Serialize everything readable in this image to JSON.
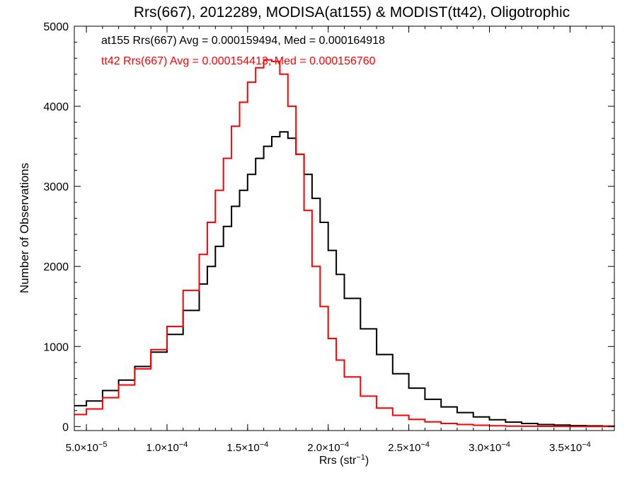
{
  "chart_data": {
    "type": "line",
    "title": "Rrs(667), 2012289, MODISA(at155) & MODIST(tt42), Oligotrophic",
    "xlabel_prefix": "Rrs (str",
    "xlabel_sup": "−1",
    "xlabel_suffix": ")",
    "ylabel": "Number of Observations",
    "xlim": [
      4.25e-05,
      0.0003775
    ],
    "ylim": [
      -50,
      5000
    ],
    "x_ticks": [
      {
        "mant": "5.0×10",
        "exp": "−5",
        "value": 5e-05
      },
      {
        "mant": "1.0×10",
        "exp": "−4",
        "value": 0.0001
      },
      {
        "mant": "1.5×10",
        "exp": "−4",
        "value": 0.00015
      },
      {
        "mant": "2.0×10",
        "exp": "−4",
        "value": 0.0002
      },
      {
        "mant": "2.5×10",
        "exp": "−4",
        "value": 0.00025
      },
      {
        "mant": "3.0×10",
        "exp": "−4",
        "value": 0.0003
      },
      {
        "mant": "3.5×10",
        "exp": "−4",
        "value": 0.00035
      }
    ],
    "y_ticks": [
      "0",
      "1000",
      "2000",
      "3000",
      "4000",
      "5000"
    ],
    "annotations": [
      {
        "text": "at155 Rrs(667) Avg = 0.000159494, Med = 0.000164918",
        "color": "#000000"
      },
      {
        "text": "tt42 Rrs(667) Avg = 0.000154413, Med = 0.000156760",
        "color": "#ff0000"
      }
    ],
    "series": [
      {
        "color": "#000000",
        "x": [
          4.25e-05,
          5e-05,
          6e-05,
          7e-05,
          8e-05,
          9e-05,
          0.0001,
          0.00011,
          0.00012,
          0.000125,
          0.00013,
          0.000135,
          0.00014,
          0.000145,
          0.00015,
          0.000155,
          0.00016,
          0.000165,
          0.00017,
          0.000175,
          0.00018,
          0.000185,
          0.00019,
          0.000195,
          0.0002,
          0.000205,
          0.00021,
          0.00022,
          0.00023,
          0.00024,
          0.00025,
          0.00026,
          0.00027,
          0.00028,
          0.00029,
          0.0003,
          0.00031,
          0.00032,
          0.00033,
          0.00034,
          0.00035,
          0.00036,
          0.00037,
          0.0003775
        ],
        "y": [
          260,
          320,
          450,
          580,
          750,
          930,
          1150,
          1450,
          1780,
          2000,
          2250,
          2500,
          2750,
          2950,
          3150,
          3350,
          3500,
          3620,
          3680,
          3600,
          3400,
          3150,
          2850,
          2550,
          2200,
          1900,
          1600,
          1220,
          900,
          660,
          480,
          340,
          245,
          175,
          120,
          85,
          55,
          38,
          25,
          18,
          12,
          8,
          6,
          5
        ]
      },
      {
        "color": "#ff0000",
        "x": [
          4.25e-05,
          5e-05,
          6e-05,
          7e-05,
          8e-05,
          9e-05,
          0.0001,
          0.00011,
          0.00012,
          0.000125,
          0.00013,
          0.000135,
          0.00014,
          0.000145,
          0.00015,
          0.000155,
          0.00016,
          0.000165,
          0.00017,
          0.000175,
          0.00018,
          0.000185,
          0.00019,
          0.000195,
          0.0002,
          0.000205,
          0.00021,
          0.00022,
          0.00023,
          0.00024,
          0.00025,
          0.00026,
          0.00027,
          0.00028,
          0.00029,
          0.0003,
          0.00031,
          0.00032,
          0.00033,
          0.00034,
          0.00035,
          0.00036,
          0.00037,
          0.0003775
        ],
        "y": [
          150,
          220,
          360,
          520,
          720,
          960,
          1250,
          1700,
          2150,
          2550,
          2950,
          3350,
          3750,
          4050,
          4300,
          4480,
          4580,
          4560,
          4400,
          4000,
          3400,
          2700,
          2000,
          1500,
          1100,
          830,
          620,
          380,
          230,
          140,
          90,
          58,
          38,
          25,
          16,
          10,
          6,
          4,
          3,
          2,
          1,
          1,
          0,
          0
        ]
      }
    ]
  }
}
